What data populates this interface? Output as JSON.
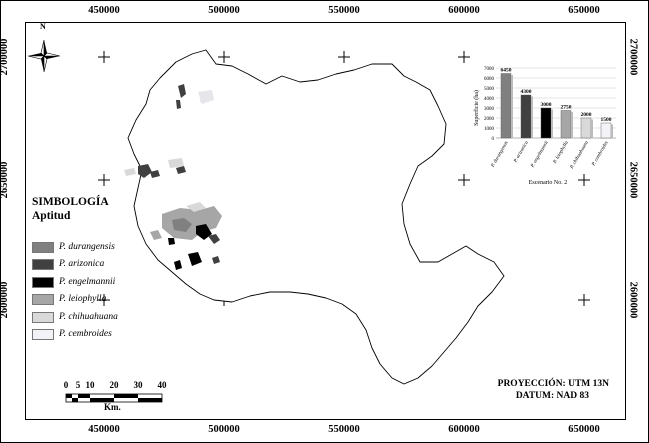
{
  "map": {
    "x_ticks": [
      "450000",
      "500000",
      "550000",
      "600000",
      "650000"
    ],
    "y_ticks": [
      "2700000",
      "2650000",
      "2600000"
    ],
    "north_label": "N"
  },
  "legend": {
    "title": "SIMBOLOGÍA",
    "subtitle": "Aptitud",
    "items": [
      {
        "label": "P. durangensis",
        "color": "#808080"
      },
      {
        "label": "P. arizonica",
        "color": "#404040"
      },
      {
        "label": "P. engelmannii",
        "color": "#000000"
      },
      {
        "label": "P. leiophylla",
        "color": "#a6a6a6"
      },
      {
        "label": "P. chihuahuana",
        "color": "#d9d9d9"
      },
      {
        "label": "P. cembroides",
        "color": "#f2f2f7"
      }
    ]
  },
  "scale_bar": {
    "labels": [
      "0",
      "5",
      "10",
      "20",
      "30",
      "40"
    ],
    "unit": "Km."
  },
  "projection": {
    "line1": "PROYECCIÓN: UTM 13N",
    "line2": "DATUM: NAD 83"
  },
  "chart_data": {
    "type": "bar",
    "categories": [
      "P. durangensis",
      "P. arizonica",
      "P. engelmannii",
      "P. leiophylla",
      "P. chihuahuana",
      "P. cembroides"
    ],
    "values": [
      6450,
      4300,
      3000,
      2750,
      2000,
      1500
    ],
    "colors": [
      "#808080",
      "#404040",
      "#000000",
      "#a6a6a6",
      "#d9d9d9",
      "#f2f2f7"
    ],
    "xlabel": "Escenario No. 2",
    "ylabel": "Superficie (ha)",
    "yticks": [
      "0",
      "1000",
      "2000",
      "3000",
      "4000",
      "5000",
      "6000",
      "7000"
    ],
    "ylim": [
      0,
      7000
    ],
    "grid": true
  }
}
